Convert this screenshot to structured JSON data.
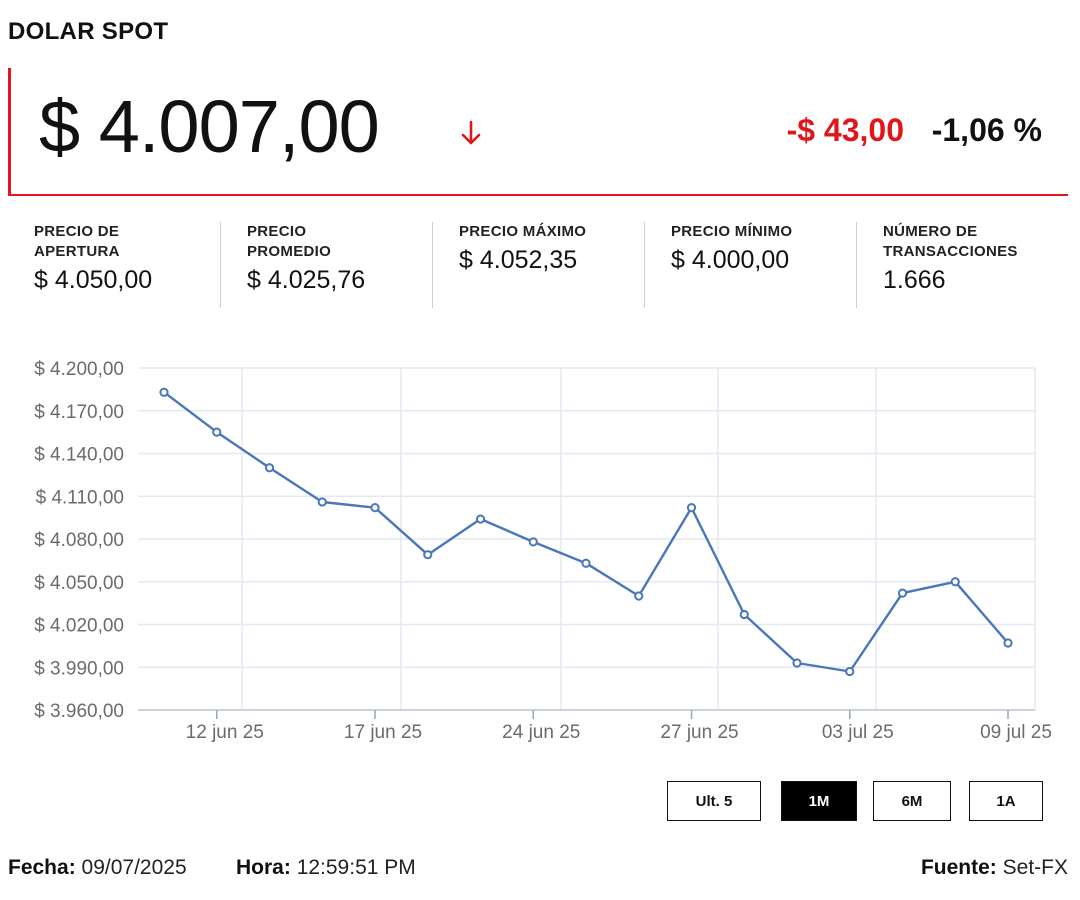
{
  "header": {
    "title": "DOLAR SPOT"
  },
  "quote": {
    "price": "$ 4.007,00",
    "direction_icon": "arrow-down-icon",
    "change_abs": "-$ 43,00",
    "change_pct": "-1,06 %"
  },
  "stats": [
    {
      "label": "PRECIO DE APERTURA",
      "value": "$ 4.050,00"
    },
    {
      "label": "PRECIO PROMEDIO",
      "value": "$ 4.025,76"
    },
    {
      "label": "PRECIO MÁXIMO",
      "value": "$ 4.052,35"
    },
    {
      "label": "PRECIO MÍNIMO",
      "value": "$ 4.000,00"
    },
    {
      "label": "NÚMERO DE TRANSACCIONES",
      "value": "1.666"
    }
  ],
  "colors": {
    "accent": "#e0161c",
    "line": "#4a76ba",
    "grid": "#e3e8f2"
  },
  "chart_data": {
    "type": "line",
    "title": "",
    "xlabel": "",
    "ylabel": "",
    "ylim": [
      3960,
      4200
    ],
    "y_ticks": [
      3960,
      3990,
      4020,
      4050,
      4080,
      4110,
      4140,
      4170,
      4200
    ],
    "y_tick_labels": [
      "$ 3.960,00",
      "$ 3.990,00",
      "$ 4.020,00",
      "$ 4.050,00",
      "$ 4.080,00",
      "$ 4.110,00",
      "$ 4.140,00",
      "$ 4.170,00",
      "$ 4.200,00"
    ],
    "x_tick_labels": [
      "12 jun 25",
      "17 jun 25",
      "24 jun 25",
      "27 jun 25",
      "03 jul 25",
      "09 jul 25"
    ],
    "x_tick_at": [
      1,
      4,
      7,
      10,
      13,
      16
    ],
    "grid": true,
    "series": [
      {
        "values": [
          4183,
          4155,
          4130,
          4106,
          4102,
          4069,
          4094,
          4078,
          4063,
          4040,
          4102,
          4027,
          3993,
          3987,
          4042,
          4050,
          4007
        ]
      }
    ]
  },
  "ranges": {
    "buttons": [
      {
        "label": "Ult. 5",
        "active": false
      },
      {
        "label": "1M",
        "active": true
      },
      {
        "label": "6M",
        "active": false
      },
      {
        "label": "1A",
        "active": false
      }
    ]
  },
  "footer": {
    "date_label": "Fecha:",
    "date_value": "09/07/2025",
    "time_label": "Hora:",
    "time_value": "12:59:51 PM",
    "source_label": "Fuente:",
    "source_value": "Set-FX"
  }
}
